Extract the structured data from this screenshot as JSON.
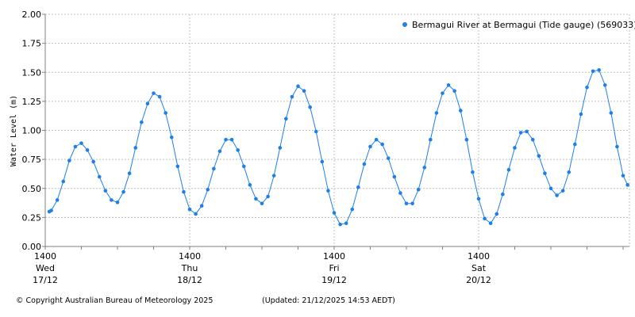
{
  "chart_data": {
    "type": "line",
    "title": "",
    "xlabel": "",
    "ylabel": "Water Level (m)",
    "ylim": [
      0,
      2
    ],
    "yticks": [
      "0.00",
      "0.25",
      "0.50",
      "0.75",
      "1.00",
      "1.25",
      "1.50",
      "1.75",
      "2.00"
    ],
    "xlim": [
      "2025-12-17T14:00",
      "2025-12-21T14:53"
    ],
    "xticks": [
      {
        "time": "2025-12-17T14:00",
        "line1": "1400",
        "line2": "Wed",
        "line3": "17/12"
      },
      {
        "time": "2025-12-18T14:00",
        "line1": "1400",
        "line2": "Thu",
        "line3": "18/12"
      },
      {
        "time": "2025-12-19T14:00",
        "line1": "1400",
        "line2": "Fri",
        "line3": "19/12"
      },
      {
        "time": "2025-12-20T14:00",
        "line1": "1400",
        "line2": "Sat",
        "line3": "20/12"
      }
    ],
    "grid": true,
    "legend_position": "top-right",
    "series": [
      {
        "name": "Bermagui River at Bermagui (Tide gauge) (569033)",
        "color": "#1e7fe8",
        "points": [
          [
            "2025-12-17T14:40",
            0.3
          ],
          [
            "2025-12-17T15:00",
            0.31
          ],
          [
            "2025-12-17T16:00",
            0.4
          ],
          [
            "2025-12-17T17:00",
            0.56
          ],
          [
            "2025-12-17T18:00",
            0.74
          ],
          [
            "2025-12-17T19:00",
            0.86
          ],
          [
            "2025-12-17T20:00",
            0.89
          ],
          [
            "2025-12-17T21:00",
            0.83
          ],
          [
            "2025-12-17T22:00",
            0.73
          ],
          [
            "2025-12-17T23:00",
            0.6
          ],
          [
            "2025-12-18T00:00",
            0.48
          ],
          [
            "2025-12-18T01:00",
            0.4
          ],
          [
            "2025-12-18T02:00",
            0.38
          ],
          [
            "2025-12-18T03:00",
            0.47
          ],
          [
            "2025-12-18T04:00",
            0.63
          ],
          [
            "2025-12-18T05:00",
            0.85
          ],
          [
            "2025-12-18T06:00",
            1.07
          ],
          [
            "2025-12-18T07:00",
            1.23
          ],
          [
            "2025-12-18T08:00",
            1.32
          ],
          [
            "2025-12-18T09:00",
            1.29
          ],
          [
            "2025-12-18T10:00",
            1.15
          ],
          [
            "2025-12-18T11:00",
            0.94
          ],
          [
            "2025-12-18T12:00",
            0.69
          ],
          [
            "2025-12-18T13:00",
            0.47
          ],
          [
            "2025-12-18T14:00",
            0.32
          ],
          [
            "2025-12-18T15:00",
            0.28
          ],
          [
            "2025-12-18T16:00",
            0.35
          ],
          [
            "2025-12-18T17:00",
            0.49
          ],
          [
            "2025-12-18T18:00",
            0.67
          ],
          [
            "2025-12-18T19:00",
            0.82
          ],
          [
            "2025-12-18T20:00",
            0.92
          ],
          [
            "2025-12-18T21:00",
            0.92
          ],
          [
            "2025-12-18T22:00",
            0.83
          ],
          [
            "2025-12-18T23:00",
            0.69
          ],
          [
            "2025-12-19T00:00",
            0.53
          ],
          [
            "2025-12-19T01:00",
            0.41
          ],
          [
            "2025-12-19T02:00",
            0.37
          ],
          [
            "2025-12-19T03:00",
            0.43
          ],
          [
            "2025-12-19T04:00",
            0.61
          ],
          [
            "2025-12-19T05:00",
            0.85
          ],
          [
            "2025-12-19T06:00",
            1.1
          ],
          [
            "2025-12-19T07:00",
            1.29
          ],
          [
            "2025-12-19T08:00",
            1.38
          ],
          [
            "2025-12-19T09:00",
            1.34
          ],
          [
            "2025-12-19T10:00",
            1.2
          ],
          [
            "2025-12-19T11:00",
            0.99
          ],
          [
            "2025-12-19T12:00",
            0.73
          ],
          [
            "2025-12-19T13:00",
            0.48
          ],
          [
            "2025-12-19T14:00",
            0.29
          ],
          [
            "2025-12-19T15:00",
            0.19
          ],
          [
            "2025-12-19T16:00",
            0.2
          ],
          [
            "2025-12-19T17:00",
            0.32
          ],
          [
            "2025-12-19T18:00",
            0.51
          ],
          [
            "2025-12-19T19:00",
            0.71
          ],
          [
            "2025-12-19T20:00",
            0.86
          ],
          [
            "2025-12-19T21:00",
            0.92
          ],
          [
            "2025-12-19T22:00",
            0.88
          ],
          [
            "2025-12-19T23:00",
            0.76
          ],
          [
            "2025-12-20T00:00",
            0.6
          ],
          [
            "2025-12-20T01:00",
            0.46
          ],
          [
            "2025-12-20T02:00",
            0.37
          ],
          [
            "2025-12-20T03:00",
            0.37
          ],
          [
            "2025-12-20T04:00",
            0.49
          ],
          [
            "2025-12-20T05:00",
            0.68
          ],
          [
            "2025-12-20T06:00",
            0.92
          ],
          [
            "2025-12-20T07:00",
            1.15
          ],
          [
            "2025-12-20T08:00",
            1.32
          ],
          [
            "2025-12-20T09:00",
            1.39
          ],
          [
            "2025-12-20T10:00",
            1.34
          ],
          [
            "2025-12-20T11:00",
            1.17
          ],
          [
            "2025-12-20T12:00",
            0.92
          ],
          [
            "2025-12-20T13:00",
            0.64
          ],
          [
            "2025-12-20T14:00",
            0.41
          ],
          [
            "2025-12-20T15:00",
            0.24
          ],
          [
            "2025-12-20T16:00",
            0.2
          ],
          [
            "2025-12-20T17:00",
            0.28
          ],
          [
            "2025-12-20T18:00",
            0.45
          ],
          [
            "2025-12-20T19:00",
            0.66
          ],
          [
            "2025-12-20T20:00",
            0.85
          ],
          [
            "2025-12-20T21:00",
            0.98
          ],
          [
            "2025-12-20T22:00",
            0.99
          ],
          [
            "2025-12-20T23:00",
            0.92
          ],
          [
            "2025-12-21T00:00",
            0.78
          ],
          [
            "2025-12-21T01:00",
            0.63
          ],
          [
            "2025-12-21T02:00",
            0.5
          ],
          [
            "2025-12-21T03:00",
            0.44
          ],
          [
            "2025-12-21T04:00",
            0.48
          ],
          [
            "2025-12-21T05:00",
            0.64
          ],
          [
            "2025-12-21T06:00",
            0.88
          ],
          [
            "2025-12-21T07:00",
            1.14
          ],
          [
            "2025-12-21T08:00",
            1.37
          ],
          [
            "2025-12-21T09:00",
            1.51
          ],
          [
            "2025-12-21T10:00",
            1.52
          ],
          [
            "2025-12-21T11:00",
            1.39
          ],
          [
            "2025-12-21T12:00",
            1.15
          ],
          [
            "2025-12-21T13:00",
            0.86
          ],
          [
            "2025-12-21T14:00",
            0.61
          ],
          [
            "2025-12-21T14:45",
            0.53
          ]
        ]
      }
    ]
  },
  "footer": {
    "copyright": "© Copyright Australian Bureau of Meteorology 2025",
    "updated": "(Updated: 21/12/2025 14:53 AEDT)"
  }
}
